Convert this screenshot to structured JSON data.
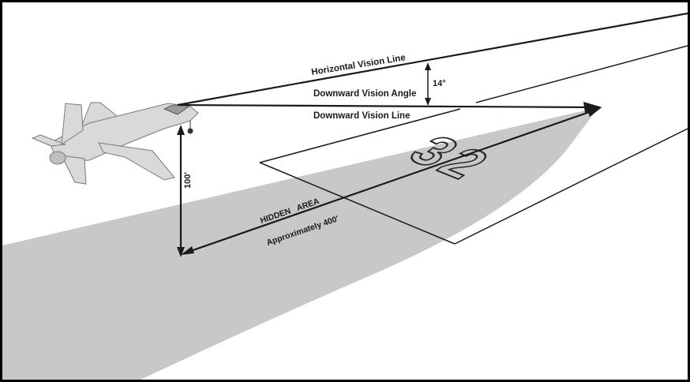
{
  "labels": {
    "horizontal_vision_line": "Horizontal Vision Line",
    "downward_vision_angle": "Downward Vision Angle",
    "angle_value": "14°",
    "downward_vision_line": "Downward Vision Line",
    "height": "100'",
    "hidden_area": "HIDDEN   AREA",
    "distance": "Approximately 400'"
  },
  "runway_number": "32",
  "colors": {
    "line": "#1a1a1a",
    "shadow": "#c8c8c8",
    "aircraft": "#d9d9d9",
    "background": "#ffffff"
  }
}
